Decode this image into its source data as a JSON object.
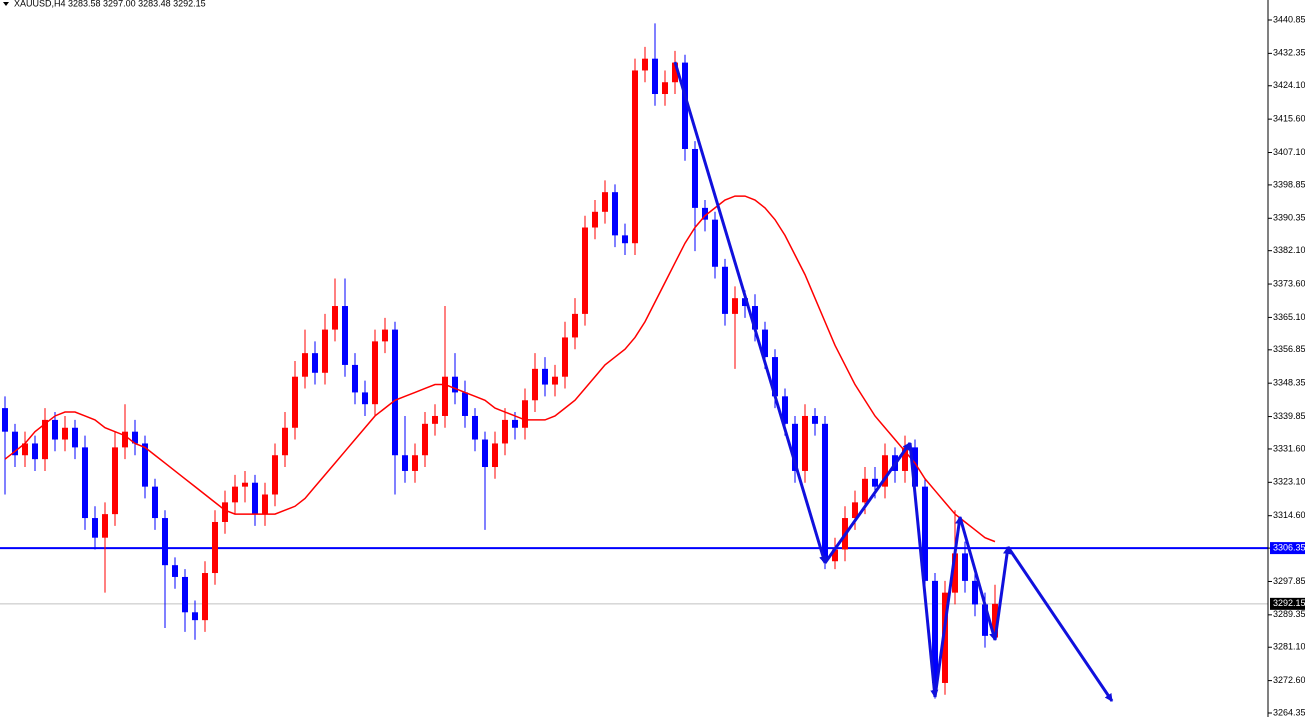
{
  "chart_data": {
    "type": "candlestick",
    "title": "XAUUSD,H4  3283.58 3297.00 3283.48 3292.15",
    "up_color": "#ff0000",
    "down_color": "#0000ff",
    "open": [
      3342,
      3336,
      3330,
      3333,
      3329,
      3339,
      3334,
      3337,
      3332,
      3314,
      3309,
      3315,
      3332,
      3336,
      3333,
      3322,
      3314,
      3302,
      3299,
      3290,
      3288,
      3300,
      3313,
      3318,
      3322,
      3323,
      3315,
      3320,
      3330,
      3337,
      3350,
      3356,
      3351,
      3362,
      3368,
      3353,
      3346,
      3343,
      3359,
      3362,
      3330,
      3326,
      3330,
      3338,
      3340,
      3350,
      3346,
      3340,
      3334,
      3327,
      3333,
      3339,
      3337,
      3344,
      3352,
      3348,
      3350,
      3360,
      3366,
      3388,
      3392,
      3397,
      3386,
      3384,
      3428,
      3431,
      3422,
      3425,
      3430,
      3408,
      3393,
      3390,
      3378,
      3366,
      3370,
      3368,
      3362,
      3355,
      3345,
      3338,
      3326,
      3340,
      3338,
      3303,
      3306,
      3314,
      3318,
      3324,
      3322,
      3330,
      3326,
      3332,
      3322,
      3298,
      3272,
      3295,
      3305,
      3298,
      3292,
      3283.58
    ],
    "high": [
      3345,
      3338,
      3336,
      3335,
      3342,
      3341,
      3340,
      3339,
      3335,
      3317,
      3318,
      3336,
      3343,
      3339,
      3335,
      3324,
      3316,
      3304,
      3301,
      3293,
      3303,
      3316,
      3321,
      3325,
      3326,
      3325,
      3323,
      3333,
      3341,
      3354,
      3362,
      3359,
      3366,
      3375,
      3375,
      3356,
      3349,
      3362,
      3365,
      3364,
      3340,
      3333,
      3341,
      3343,
      3368,
      3356,
      3349,
      3342,
      3336,
      3336,
      3342,
      3341,
      3347,
      3356,
      3355,
      3353,
      3364,
      3370,
      3391,
      3395,
      3400,
      3399,
      3389,
      3431,
      3434,
      3440,
      3428,
      3433,
      3432,
      3410,
      3395,
      3392,
      3380,
      3373,
      3372,
      3371,
      3364,
      3357,
      3347,
      3340,
      3343,
      3342,
      3340,
      3309,
      3317,
      3321,
      3327,
      3327,
      3333,
      3332,
      3335,
      3334,
      3324,
      3300,
      3298,
      3316,
      3308,
      3300,
      3295,
      3297.0
    ],
    "low": [
      3320,
      3327,
      3327,
      3326,
      3326,
      3331,
      3331,
      3329,
      3311,
      3306,
      3295,
      3312,
      3329,
      3330,
      3319,
      3311,
      3286,
      3296,
      3285,
      3283,
      3285,
      3297,
      3310,
      3315,
      3318,
      3312,
      3312,
      3317,
      3327,
      3334,
      3347,
      3348,
      3348,
      3359,
      3350,
      3343,
      3340,
      3340,
      3356,
      3320,
      3323,
      3323,
      3327,
      3335,
      3337,
      3343,
      3337,
      3331,
      3311,
      3324,
      3330,
      3334,
      3334,
      3341,
      3345,
      3345,
      3347,
      3357,
      3363,
      3385,
      3389,
      3383,
      3381,
      3381,
      3425,
      3419,
      3419,
      3422,
      3405,
      3382,
      3387,
      3375,
      3363,
      3352,
      3365,
      3359,
      3352,
      3342,
      3335,
      3323,
      3323,
      3335,
      3301,
      3301,
      3303,
      3311,
      3315,
      3319,
      3319,
      3323,
      3323,
      3319,
      3295,
      3268,
      3269,
      3292,
      3295,
      3289,
      3281,
      3283.48
    ],
    "close": [
      3336,
      3330,
      3333,
      3329,
      3339,
      3334,
      3337,
      3332,
      3314,
      3309,
      3315,
      3332,
      3336,
      3333,
      3322,
      3314,
      3302,
      3299,
      3290,
      3288,
      3300,
      3313,
      3318,
      3322,
      3323,
      3315,
      3320,
      3330,
      3337,
      3350,
      3356,
      3351,
      3362,
      3368,
      3353,
      3346,
      3343,
      3359,
      3362,
      3330,
      3326,
      3330,
      3338,
      3340,
      3350,
      3346,
      3340,
      3334,
      3327,
      3333,
      3339,
      3337,
      3344,
      3352,
      3348,
      3350,
      3360,
      3366,
      3388,
      3392,
      3397,
      3386,
      3384,
      3428,
      3431,
      3422,
      3425,
      3430,
      3408,
      3393,
      3390,
      3378,
      3366,
      3370,
      3368,
      3362,
      3355,
      3345,
      3338,
      3326,
      3340,
      3338,
      3303,
      3306,
      3314,
      3318,
      3324,
      3322,
      3330,
      3326,
      3332,
      3322,
      3298,
      3272,
      3295,
      3305,
      3298,
      3292,
      3284,
      3292.15
    ],
    "ma": {
      "color": "#ff0000",
      "values": [
        3329,
        3331,
        3333,
        3336,
        3338,
        3340,
        3341,
        3341,
        3340,
        3339,
        3337,
        3336,
        3335,
        3333,
        3332,
        3330,
        3328,
        3326,
        3324,
        3322,
        3320,
        3318,
        3316,
        3315,
        3315,
        3315,
        3315,
        3315,
        3316,
        3317,
        3319,
        3322,
        3325,
        3328,
        3331,
        3334,
        3337,
        3340,
        3342,
        3344,
        3345,
        3346,
        3347,
        3348,
        3348,
        3347,
        3346,
        3345,
        3344,
        3342,
        3341,
        3340,
        3339,
        3339,
        3339,
        3340,
        3342,
        3344,
        3347,
        3350,
        3353,
        3355,
        3357,
        3360,
        3364,
        3369,
        3374,
        3379,
        3384,
        3388,
        3391,
        3393,
        3395,
        3396,
        3396,
        3395,
        3393,
        3390,
        3386,
        3381,
        3376,
        3370,
        3364,
        3358,
        3353,
        3348,
        3344,
        3340,
        3337,
        3334,
        3331,
        3328,
        3324,
        3321,
        3318,
        3315,
        3313,
        3311,
        3309,
        3308
      ]
    },
    "ylim": [
      3264.35,
      3440.85
    ],
    "yticks": [
      3440.85,
      3432.35,
      {
        "value": 3424.1,
        "label": "3424.10"
      },
      {
        "value": 3415.6,
        "label": "3415.60"
      },
      {
        "value": 3407.1,
        "label": "3407.10"
      },
      3398.85,
      3390.35,
      {
        "value": 3382.1,
        "label": "3382.10"
      },
      {
        "value": 3373.6,
        "label": "3373.60"
      },
      {
        "value": 3365.1,
        "label": "3365.10"
      },
      3356.85,
      3348.35,
      3339.85,
      {
        "value": 3331.6,
        "label": "3331.60"
      },
      {
        "value": 3323.1,
        "label": "3323.10"
      },
      {
        "value": 3314.6,
        "label": "3314.60"
      },
      3306.35,
      3297.85,
      3289.35,
      {
        "value": 3281.1,
        "label": "3281.10"
      },
      {
        "value": 3272.6,
        "label": "3272.60"
      },
      3264.35
    ],
    "horizontal_line": {
      "value": 3306.35,
      "color": "#0000ff"
    },
    "current_price": 3292.15
  }
}
